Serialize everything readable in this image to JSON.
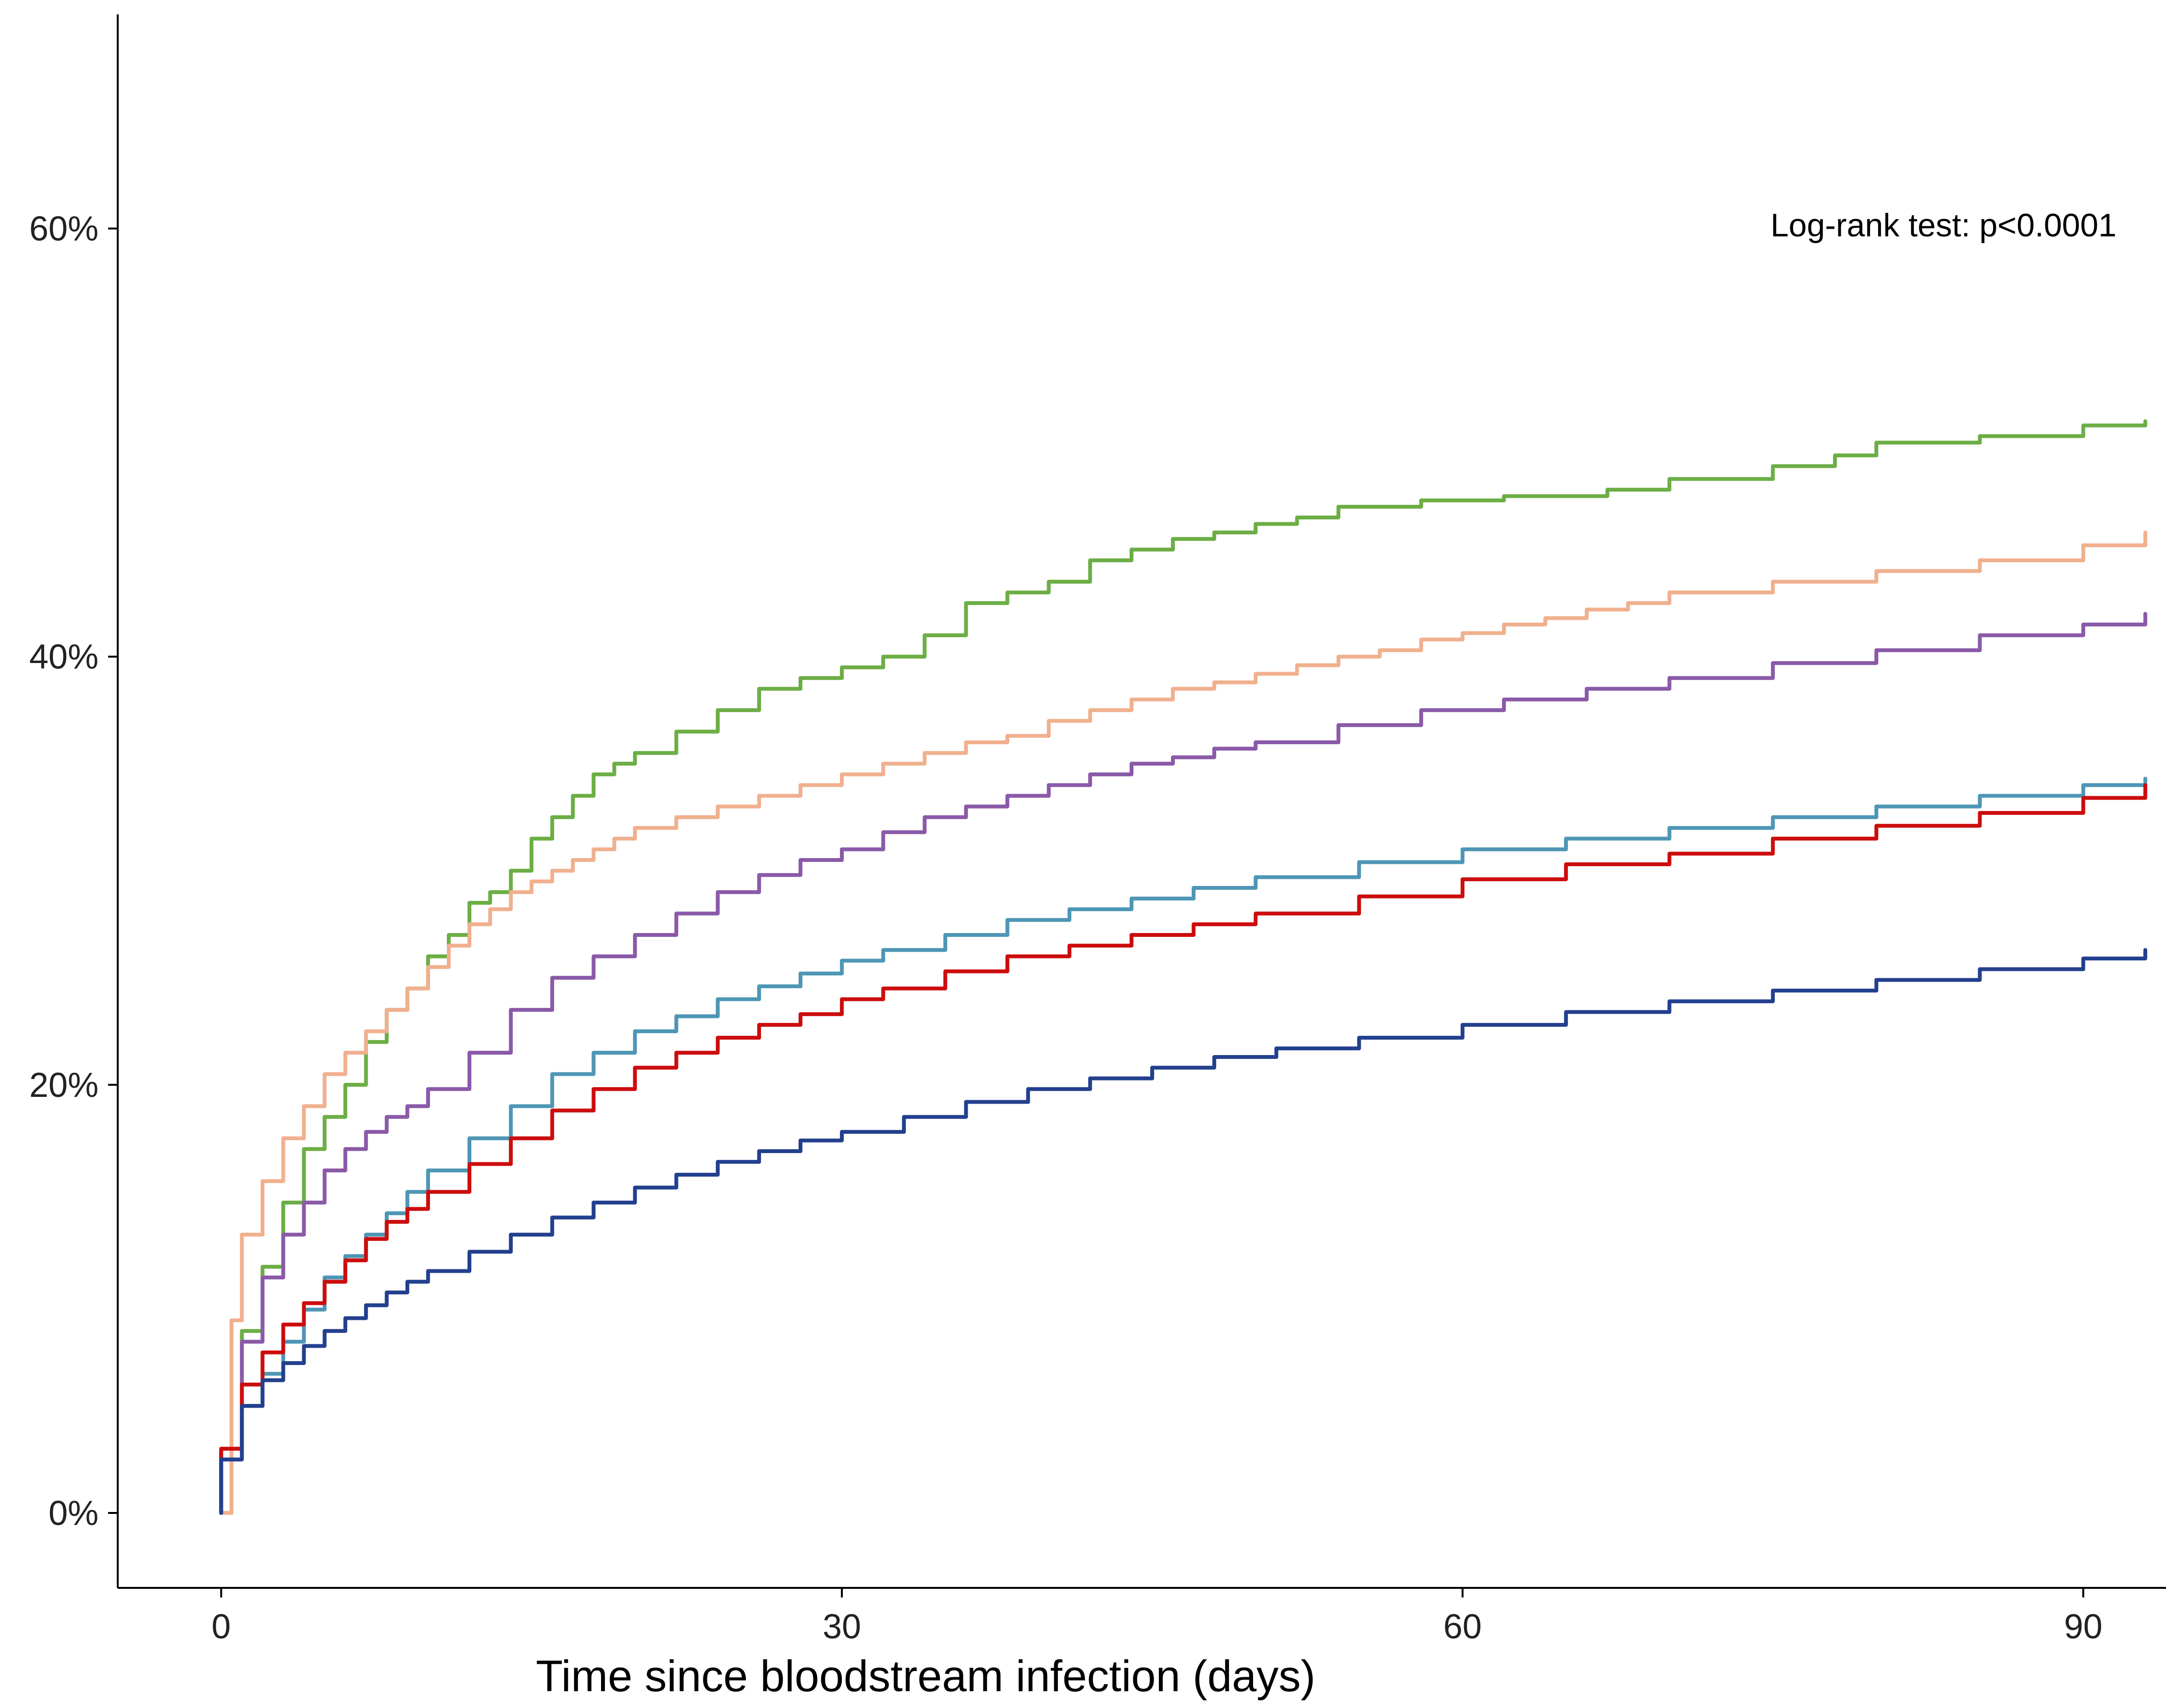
{
  "chart_data": {
    "type": "line",
    "title": "",
    "xlabel": "Time since bloodstream infection (days)",
    "ylabel": "",
    "xlim": [
      -5,
      94
    ],
    "ylim": [
      -3.5,
      70
    ],
    "x_ticks": [
      0,
      30,
      60,
      90
    ],
    "x_tick_labels": [
      "0",
      "30",
      "60",
      "90"
    ],
    "y_ticks": [
      0,
      20,
      40,
      60
    ],
    "y_tick_labels": [
      "0%",
      "20%",
      "40%",
      "60%"
    ],
    "grid": false,
    "legend": "none",
    "annotation": "Log-rank test: p<0.0001",
    "series": [
      {
        "color": "#6cae45",
        "x": [
          0,
          1,
          2,
          3,
          4,
          5,
          6,
          7,
          8,
          9,
          10,
          11,
          12,
          13,
          14,
          15,
          16,
          17,
          18,
          19,
          20,
          22,
          24,
          26,
          28,
          30,
          32,
          34,
          36,
          38,
          40,
          42,
          44,
          46,
          48,
          50,
          52,
          54,
          56,
          58,
          60,
          62,
          64,
          67,
          70,
          75,
          78,
          80,
          85,
          90,
          93
        ],
        "y": [
          3,
          8.5,
          11.5,
          14.5,
          17,
          18.5,
          20,
          22,
          23.5,
          24.5,
          26,
          27,
          28.5,
          29,
          30,
          31.5,
          32.5,
          33.5,
          34.5,
          35,
          35.5,
          36.5,
          37.5,
          38.5,
          39,
          39.5,
          40,
          41,
          42.5,
          43,
          43.5,
          44.5,
          45,
          45.5,
          45.8,
          46.2,
          46.5,
          47,
          47,
          47.3,
          47.3,
          47.5,
          47.5,
          47.8,
          48.3,
          48.9,
          49.4,
          50,
          50.3,
          50.8,
          51
        ]
      },
      {
        "color": "#f0b08e",
        "x": [
          0,
          0.5,
          1,
          2,
          3,
          4,
          5,
          6,
          7,
          8,
          9,
          10,
          11,
          12,
          13,
          14,
          15,
          16,
          17,
          18,
          19,
          20,
          22,
          24,
          26,
          28,
          30,
          32,
          34,
          36,
          38,
          40,
          42,
          44,
          46,
          48,
          50,
          52,
          54,
          56,
          58,
          60,
          62,
          64,
          66,
          68,
          70,
          75,
          80,
          85,
          90,
          93
        ],
        "y": [
          0,
          9,
          13,
          15.5,
          17.5,
          19,
          20.5,
          21.5,
          22.5,
          23.5,
          24.5,
          25.5,
          26.5,
          27.5,
          28.2,
          29,
          29.5,
          30,
          30.5,
          31,
          31.5,
          32,
          32.5,
          33,
          33.5,
          34,
          34.5,
          35,
          35.5,
          36,
          36.3,
          37,
          37.5,
          38,
          38.5,
          38.8,
          39.2,
          39.6,
          40,
          40.3,
          40.8,
          41.1,
          41.5,
          41.8,
          42.2,
          42.5,
          43,
          43.5,
          44,
          44.5,
          45.2,
          45.8
        ]
      },
      {
        "color": "#8a5aa8",
        "x": [
          0,
          1,
          2,
          3,
          4,
          5,
          6,
          7,
          8,
          9,
          10,
          12,
          14,
          16,
          18,
          20,
          22,
          24,
          26,
          28,
          30,
          32,
          34,
          36,
          38,
          40,
          42,
          44,
          46,
          48,
          50,
          54,
          58,
          62,
          66,
          70,
          75,
          80,
          85,
          90,
          93
        ],
        "y": [
          3,
          8,
          11,
          13,
          14.5,
          16,
          17,
          17.8,
          18.5,
          19,
          19.8,
          21.5,
          23.5,
          25,
          26,
          27,
          28,
          29,
          29.8,
          30.5,
          31,
          31.8,
          32.5,
          33,
          33.5,
          34,
          34.5,
          35,
          35.3,
          35.7,
          36,
          36.8,
          37.5,
          38,
          38.5,
          39,
          39.7,
          40.3,
          41,
          41.5,
          42
        ]
      },
      {
        "color": "#4e96b5",
        "x": [
          0,
          1,
          2,
          3,
          4,
          5,
          6,
          7,
          8,
          9,
          10,
          12,
          14,
          16,
          18,
          20,
          22,
          24,
          26,
          28,
          30,
          32,
          35,
          38,
          41,
          44,
          47,
          50,
          55,
          60,
          65,
          70,
          75,
          80,
          85,
          90,
          93
        ],
        "y": [
          2.5,
          5,
          6.5,
          8,
          9.5,
          11,
          12,
          13,
          14,
          15,
          16,
          17.5,
          19,
          20.5,
          21.5,
          22.5,
          23.2,
          24,
          24.6,
          25.2,
          25.8,
          26.3,
          27,
          27.7,
          28.2,
          28.7,
          29.2,
          29.7,
          30.4,
          31,
          31.5,
          32,
          32.5,
          33,
          33.5,
          34,
          34.3
        ]
      },
      {
        "color": "#cc0d0d",
        "x": [
          0,
          1,
          2,
          3,
          4,
          5,
          6,
          7,
          8,
          9,
          10,
          12,
          14,
          16,
          18,
          20,
          22,
          24,
          26,
          28,
          30,
          32,
          35,
          38,
          41,
          44,
          47,
          50,
          55,
          60,
          65,
          70,
          75,
          80,
          85,
          90,
          93
        ],
        "y": [
          3,
          6,
          7.5,
          8.8,
          9.8,
          10.8,
          11.8,
          12.8,
          13.6,
          14.2,
          15,
          16.3,
          17.5,
          18.8,
          19.8,
          20.8,
          21.5,
          22.2,
          22.8,
          23.3,
          24,
          24.5,
          25.3,
          26,
          26.5,
          27,
          27.5,
          28,
          28.8,
          29.6,
          30.3,
          30.8,
          31.5,
          32.1,
          32.7,
          33.4,
          34
        ]
      },
      {
        "color": "#23408e",
        "x": [
          0,
          1,
          2,
          3,
          4,
          5,
          6,
          7,
          8,
          9,
          10,
          12,
          14,
          16,
          18,
          20,
          22,
          24,
          26,
          28,
          30,
          33,
          36,
          39,
          42,
          45,
          48,
          51,
          55,
          60,
          65,
          70,
          75,
          80,
          85,
          90,
          93
        ],
        "y": [
          2.5,
          5,
          6.2,
          7,
          7.8,
          8.5,
          9.1,
          9.7,
          10.3,
          10.8,
          11.3,
          12.2,
          13,
          13.8,
          14.5,
          15.2,
          15.8,
          16.4,
          16.9,
          17.4,
          17.8,
          18.5,
          19.2,
          19.8,
          20.3,
          20.8,
          21.3,
          21.7,
          22.2,
          22.8,
          23.4,
          23.9,
          24.4,
          24.9,
          25.4,
          25.9,
          26.3
        ]
      }
    ]
  }
}
